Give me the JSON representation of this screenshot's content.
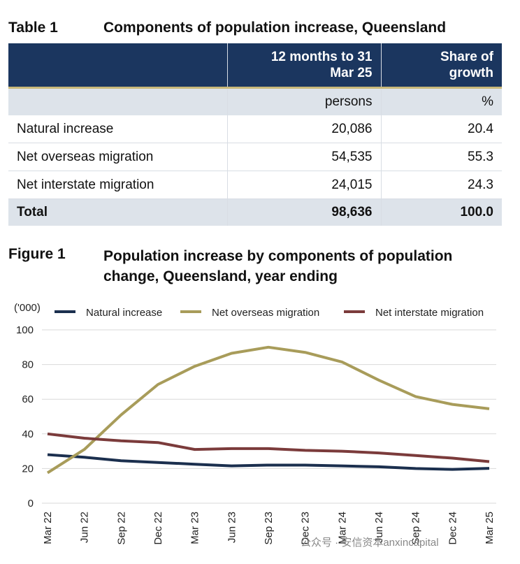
{
  "table": {
    "label": "Table 1",
    "title": "Components of population increase, Queensland",
    "header": [
      "12 months to 31 Mar 25",
      "Share of growth"
    ],
    "units": [
      "persons",
      "%"
    ],
    "rows": [
      [
        "Natural increase",
        "20,086",
        "20.4"
      ],
      [
        "Net overseas migration",
        "54,535",
        "55.3"
      ],
      [
        "Net interstate migration",
        "24,015",
        "24.3"
      ]
    ],
    "total": [
      "Total",
      "98,636",
      "100.0"
    ]
  },
  "chart_data": {
    "type": "line",
    "label": "Figure 1",
    "title": "Population increase by components of population change, Queensland, year ending",
    "y_unit": "('000)",
    "categories": [
      "Mar 22",
      "Jun 22",
      "Sep 22",
      "Dec 22",
      "Mar 23",
      "Jun 23",
      "Sep 23",
      "Dec 23",
      "Mar 24",
      "Jun 24",
      "Sep 24",
      "Dec 24",
      "Mar 25"
    ],
    "series": [
      {
        "name": "Natural increase",
        "color": "#1b2f4e",
        "values": [
          28,
          26.5,
          24.5,
          23.5,
          22.5,
          21.5,
          22,
          22,
          21.5,
          21,
          20,
          19.5,
          20.1
        ]
      },
      {
        "name": "Net overseas migration",
        "color": "#a89c5a",
        "values": [
          17.5,
          31,
          51,
          68.5,
          79,
          86.5,
          90,
          87,
          81.5,
          71,
          61.5,
          57,
          54.5
        ]
      },
      {
        "name": "Net interstate migration",
        "color": "#7b3b3b",
        "values": [
          40,
          37.5,
          36,
          35,
          31,
          31.5,
          31.5,
          30.5,
          30,
          29,
          27.5,
          26,
          24
        ]
      }
    ],
    "ylim": [
      0,
      100
    ],
    "yticks": [
      0,
      20,
      40,
      60,
      80,
      100
    ],
    "grid": true
  },
  "watermark": "公众号 · 安信资本anxincapital"
}
